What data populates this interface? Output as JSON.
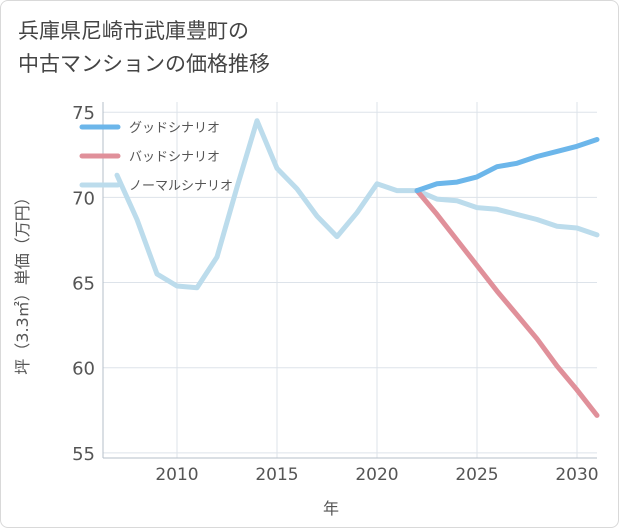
{
  "title_lines": [
    "兵庫県尼崎市武庫豊町の",
    "中古マンションの価格推移"
  ],
  "chart_data": {
    "type": "line",
    "title": "兵庫県尼崎市武庫豊町の中古マンションの価格推移",
    "xlabel": "年",
    "ylabel": "坪（3.3㎡）単価（万円）",
    "xlim": [
      2006.3,
      2031
    ],
    "ylim": [
      54.7,
      75.6
    ],
    "xticks": [
      2010,
      2015,
      2020,
      2025,
      2030
    ],
    "yticks": [
      55,
      60,
      65,
      70,
      75
    ],
    "grid": true,
    "legend_position": "top-left",
    "series": [
      {
        "name": "グッドシナリオ",
        "color": "#6cb6ea",
        "x": [
          2022,
          2023,
          2024,
          2025,
          2026,
          2027,
          2028,
          2029,
          2030,
          2031
        ],
        "y": [
          70.4,
          70.8,
          70.9,
          71.2,
          71.8,
          72.0,
          72.4,
          72.7,
          73.0,
          73.4
        ]
      },
      {
        "name": "バッドシナリオ",
        "color": "#e0909a",
        "x": [
          2022,
          2023,
          2024,
          2025,
          2026,
          2027,
          2028,
          2029,
          2030,
          2031
        ],
        "y": [
          70.4,
          69.0,
          67.5,
          66.0,
          64.5,
          63.1,
          61.7,
          60.1,
          58.7,
          57.2
        ]
      },
      {
        "name": "ノーマルシナリオ",
        "color": "#bcdcec",
        "x": [
          2007,
          2008,
          2009,
          2010,
          2011,
          2012,
          2013,
          2014,
          2015,
          2016,
          2017,
          2018,
          2019,
          2020,
          2021,
          2022,
          2023,
          2024,
          2025,
          2026,
          2027,
          2028,
          2029,
          2030,
          2031
        ],
        "y": [
          71.3,
          68.7,
          65.5,
          64.8,
          64.7,
          66.5,
          70.6,
          74.5,
          71.7,
          70.5,
          68.9,
          67.7,
          69.1,
          70.8,
          70.4,
          70.4,
          69.9,
          69.8,
          69.4,
          69.3,
          69.0,
          68.7,
          68.3,
          68.2,
          67.8
        ]
      }
    ]
  }
}
